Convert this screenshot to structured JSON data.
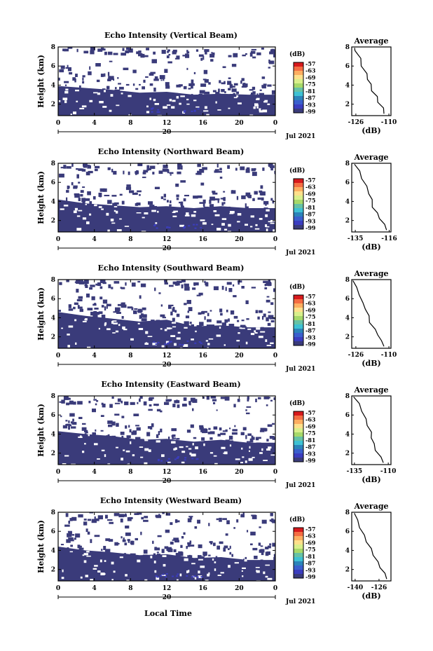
{
  "figure": {
    "shared_xlabel": "Local Time",
    "date_label": "Jul 2021",
    "day_label": "20",
    "x_ticks": [
      "0",
      "4",
      "8",
      "12",
      "16",
      "20",
      "0"
    ],
    "y_ticks": [
      "2",
      "4",
      "6",
      "8"
    ],
    "ylabel": "Height (km)",
    "colorbar_unit": "(dB)",
    "colorbar_ticks": [
      "-57",
      "-63",
      "-69",
      "-75",
      "-81",
      "-87",
      "-93",
      "-99"
    ],
    "colorbar_colors": [
      "#d7191c",
      "#f46d43",
      "#fdae61",
      "#fee08b",
      "#d9ef8b",
      "#a6d96a",
      "#66c2a5",
      "#3ec1d3",
      "#2b83ba",
      "#3a5fcd",
      "#3b3dbf",
      "#3a3b7a"
    ],
    "fill_color": "#3a3b7a",
    "avg_title": "Average",
    "avg_xlabel": "(dB)"
  },
  "chart_data": [
    {
      "type": "heatmap",
      "title": "Echo Intensity (Vertical Beam)",
      "xlabel": "",
      "ylabel": "Height (km)",
      "xlim": [
        0,
        24
      ],
      "ylim": [
        0.8,
        8.0
      ],
      "echo_top_km": [
        [
          0,
          3.9
        ],
        [
          3,
          3.7
        ],
        [
          6,
          3.5
        ],
        [
          9,
          3.2
        ],
        [
          12,
          3.3
        ],
        [
          15,
          3.0
        ],
        [
          18,
          3.1
        ],
        [
          21,
          3.0
        ],
        [
          24,
          3.0
        ]
      ],
      "average": {
        "title": "Average",
        "xlabel": "(dB)",
        "x_ticks": [
          "-126",
          "-110"
        ],
        "xlim": [
          -128,
          -109
        ],
        "ylim": [
          0.8,
          8.0
        ],
        "profile": [
          [
            -112,
            1.0
          ],
          [
            -113,
            1.6
          ],
          [
            -115,
            2.2
          ],
          [
            -116,
            2.8
          ],
          [
            -118,
            3.4
          ],
          [
            -119,
            4.1
          ],
          [
            -120,
            4.6
          ],
          [
            -121,
            5.2
          ],
          [
            -123,
            6.0
          ],
          [
            -124,
            6.8
          ],
          [
            -126,
            7.6
          ],
          [
            -127,
            7.9
          ]
        ]
      }
    },
    {
      "type": "heatmap",
      "title": "Echo Intensity (Northward Beam)",
      "xlabel": "",
      "ylabel": "Height (km)",
      "xlim": [
        0,
        24
      ],
      "ylim": [
        0.8,
        8.0
      ],
      "echo_top_km": [
        [
          0,
          4.2
        ],
        [
          3,
          3.8
        ],
        [
          6,
          3.6
        ],
        [
          9,
          3.4
        ],
        [
          12,
          3.5
        ],
        [
          15,
          3.3
        ],
        [
          18,
          3.5
        ],
        [
          21,
          3.3
        ],
        [
          24,
          3.3
        ]
      ],
      "average": {
        "title": "Average",
        "xlabel": "(dB)",
        "x_ticks": [
          "-135",
          "-116"
        ],
        "xlim": [
          -137,
          -115
        ],
        "ylim": [
          0.8,
          8.0
        ],
        "profile": [
          [
            -117,
            1.0
          ],
          [
            -119,
            1.6
          ],
          [
            -121,
            2.2
          ],
          [
            -123,
            2.8
          ],
          [
            -125,
            3.4
          ],
          [
            -126,
            4.2
          ],
          [
            -127,
            4.8
          ],
          [
            -129,
            5.6
          ],
          [
            -131,
            6.4
          ],
          [
            -133,
            7.2
          ],
          [
            -135,
            7.9
          ]
        ]
      }
    },
    {
      "type": "heatmap",
      "title": "Echo Intensity (Southward Beam)",
      "xlabel": "",
      "ylabel": "Height (km)",
      "xlim": [
        0,
        24
      ],
      "ylim": [
        0.8,
        8.0
      ],
      "echo_top_km": [
        [
          0,
          4.6
        ],
        [
          3,
          4.2
        ],
        [
          6,
          3.9
        ],
        [
          9,
          3.6
        ],
        [
          12,
          3.8
        ],
        [
          15,
          3.1
        ],
        [
          18,
          3.2
        ],
        [
          21,
          3.0
        ],
        [
          24,
          3.0
        ]
      ],
      "average": {
        "title": "Average",
        "xlabel": "(dB)",
        "x_ticks": [
          "-126",
          "-110"
        ],
        "xlim": [
          -128,
          -109
        ],
        "ylim": [
          0.8,
          8.0
        ],
        "profile": [
          [
            -112,
            1.0
          ],
          [
            -114,
            1.6
          ],
          [
            -115,
            2.2
          ],
          [
            -117,
            2.8
          ],
          [
            -119,
            3.5
          ],
          [
            -120,
            4.2
          ],
          [
            -121,
            4.9
          ],
          [
            -123,
            5.6
          ],
          [
            -124,
            6.4
          ],
          [
            -126,
            7.2
          ],
          [
            -127,
            7.9
          ]
        ]
      }
    },
    {
      "type": "heatmap",
      "title": "Echo Intensity (Eastward Beam)",
      "xlabel": "",
      "ylabel": "Height (km)",
      "xlim": [
        0,
        24
      ],
      "ylim": [
        0.8,
        8.0
      ],
      "echo_top_km": [
        [
          0,
          4.3
        ],
        [
          3,
          4.0
        ],
        [
          6,
          3.8
        ],
        [
          9,
          3.4
        ],
        [
          12,
          3.5
        ],
        [
          15,
          3.2
        ],
        [
          18,
          3.4
        ],
        [
          21,
          3.1
        ],
        [
          24,
          3.1
        ]
      ],
      "average": {
        "title": "Average",
        "xlabel": "(dB)",
        "x_ticks": [
          "-135",
          "-110"
        ],
        "xlim": [
          -137,
          -108
        ],
        "ylim": [
          0.8,
          8.0
        ],
        "profile": [
          [
            -113,
            1.0
          ],
          [
            -116,
            1.6
          ],
          [
            -119,
            2.3
          ],
          [
            -121,
            3.0
          ],
          [
            -122,
            3.6
          ],
          [
            -123,
            4.2
          ],
          [
            -125,
            4.9
          ],
          [
            -127,
            5.6
          ],
          [
            -129,
            6.4
          ],
          [
            -132,
            7.2
          ],
          [
            -135,
            7.9
          ]
        ]
      }
    },
    {
      "type": "heatmap",
      "title": "Echo Intensity (Westward Beam)",
      "xlabel": "Local Time",
      "ylabel": "Height (km)",
      "xlim": [
        0,
        24
      ],
      "ylim": [
        0.8,
        8.0
      ],
      "echo_top_km": [
        [
          0,
          4.4
        ],
        [
          3,
          4.0
        ],
        [
          6,
          3.8
        ],
        [
          9,
          3.5
        ],
        [
          12,
          3.6
        ],
        [
          15,
          3.2
        ],
        [
          18,
          3.3
        ],
        [
          21,
          3.0
        ],
        [
          24,
          3.0
        ]
      ],
      "average": {
        "title": "Average",
        "xlabel": "(dB)",
        "x_ticks": [
          "-140",
          "-126"
        ],
        "xlim": [
          -142,
          -119
        ],
        "ylim": [
          0.8,
          8.0
        ],
        "profile": [
          [
            -121,
            1.0
          ],
          [
            -123,
            1.6
          ],
          [
            -125,
            2.2
          ],
          [
            -127,
            2.8
          ],
          [
            -129,
            3.5
          ],
          [
            -131,
            4.2
          ],
          [
            -133,
            4.9
          ],
          [
            -135,
            5.6
          ],
          [
            -137,
            6.4
          ],
          [
            -139,
            7.2
          ],
          [
            -140,
            7.9
          ]
        ]
      }
    }
  ]
}
